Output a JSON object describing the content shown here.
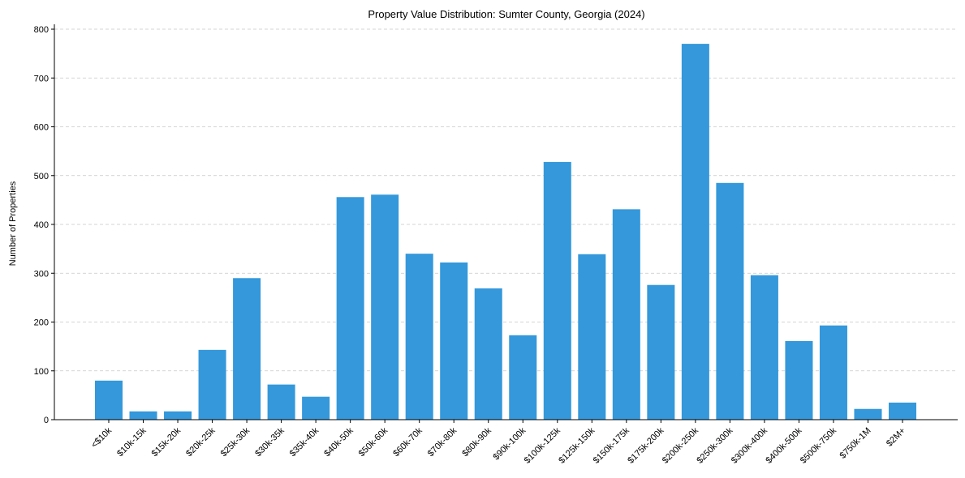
{
  "chart_data": {
    "type": "bar",
    "title": "Property Value Distribution: Sumter County, Georgia (2024)",
    "xlabel": "",
    "ylabel": "Number of Properties",
    "ylim": [
      0,
      810
    ],
    "yticks": [
      0,
      100,
      200,
      300,
      400,
      500,
      600,
      700,
      800
    ],
    "grid": "y",
    "bar_color": "#3498db",
    "categories": [
      "<$10k",
      "$10k-15k",
      "$15k-20k",
      "$20k-25k",
      "$25k-30k",
      "$30k-35k",
      "$35k-40k",
      "$40k-50k",
      "$50k-60k",
      "$60k-70k",
      "$70k-80k",
      "$80k-90k",
      "$90k-100k",
      "$100k-125k",
      "$125k-150k",
      "$150k-175k",
      "$175k-200k",
      "$200k-250k",
      "$250k-300k",
      "$300k-400k",
      "$400k-500k",
      "$500k-750k",
      "$750k-1M",
      "$2M+"
    ],
    "values": [
      80,
      17,
      17,
      143,
      290,
      72,
      47,
      456,
      461,
      340,
      322,
      269,
      173,
      528,
      339,
      431,
      276,
      770,
      485,
      296,
      161,
      193,
      22,
      35
    ]
  }
}
